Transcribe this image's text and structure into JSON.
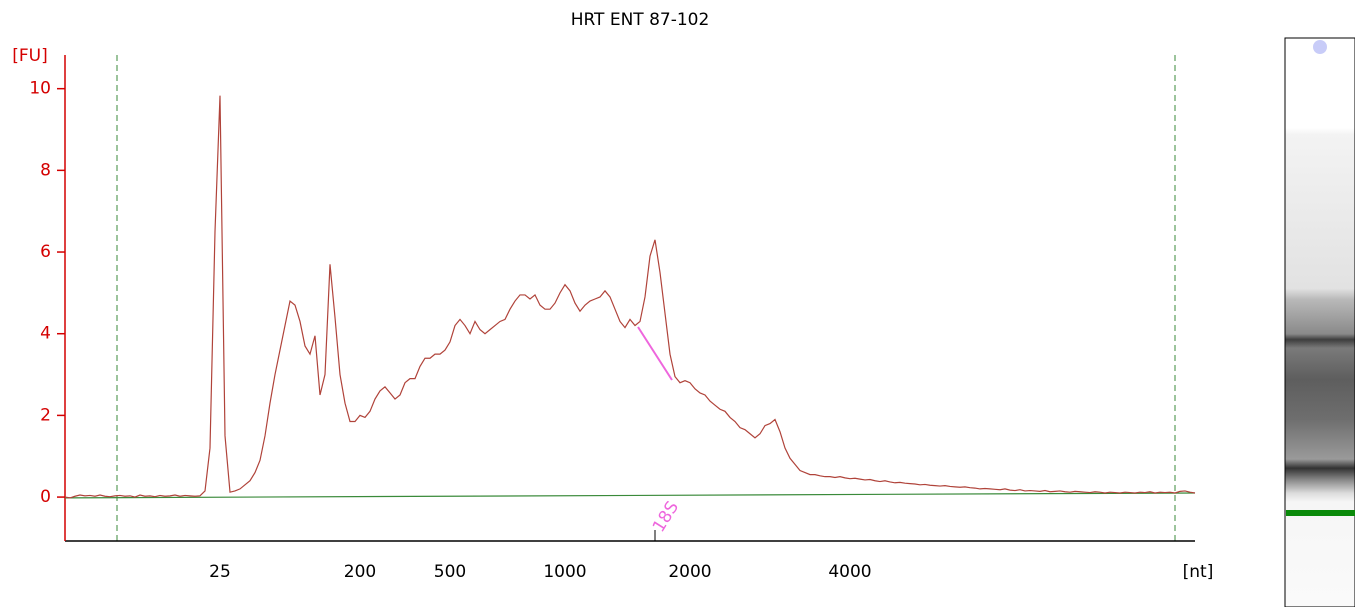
{
  "chart_data": {
    "type": "line",
    "title": "HRT ENT 87-102",
    "y_label": "[FU]",
    "x_label": "[nt]",
    "annotation": "18S",
    "color": "#b0433a",
    "baseline": [
      -0.02,
      0.1
    ],
    "baseline_color": "#3a8a3a",
    "ylim": [
      -1.1,
      10.8
    ],
    "yticks": [
      0,
      2,
      4,
      6,
      8,
      10
    ],
    "categories": [
      null,
      null,
      null,
      null,
      null,
      null,
      null,
      null,
      null,
      null,
      null,
      null,
      null,
      null,
      null,
      null,
      null,
      null,
      null,
      null,
      null,
      null,
      null,
      null,
      null,
      null,
      null,
      null,
      null,
      null,
      null,
      "25",
      null,
      null,
      null,
      null,
      null,
      null,
      null,
      null,
      null,
      null,
      null,
      null,
      null,
      null,
      null,
      null,
      null,
      null,
      null,
      null,
      null,
      null,
      null,
      null,
      null,
      null,
      null,
      "200",
      null,
      null,
      null,
      null,
      null,
      null,
      null,
      null,
      null,
      null,
      null,
      null,
      null,
      null,
      null,
      null,
      null,
      "500",
      null,
      null,
      null,
      null,
      null,
      null,
      null,
      null,
      null,
      null,
      null,
      null,
      null,
      null,
      null,
      null,
      null,
      null,
      null,
      null,
      null,
      null,
      "1000",
      null,
      null,
      null,
      null,
      null,
      null,
      null,
      null,
      null,
      null,
      null,
      null,
      null,
      null,
      null,
      null,
      null,
      null,
      null,
      null,
      null,
      null,
      null,
      null,
      "2000",
      null,
      null,
      null,
      null,
      null,
      null,
      null,
      null,
      null,
      null,
      null,
      null,
      null,
      null,
      null,
      null,
      null,
      null,
      null,
      null,
      null,
      null,
      null,
      null,
      null,
      null,
      null,
      null,
      null,
      null,
      null,
      "4000",
      null,
      null,
      null,
      null,
      null,
      null,
      null,
      null,
      null,
      null,
      null,
      null,
      null,
      null,
      null,
      null,
      null,
      null,
      null,
      null,
      null,
      null,
      null,
      null,
      null,
      null,
      null,
      null,
      null,
      null,
      null,
      null,
      null,
      null,
      null,
      null,
      null,
      null,
      null,
      null,
      null,
      null,
      null,
      null,
      null,
      null,
      null,
      null,
      null,
      null,
      null,
      null,
      null,
      null,
      null,
      null,
      null,
      null,
      null,
      null,
      null,
      null,
      null,
      null,
      null,
      null,
      null,
      null,
      null
    ],
    "values": [
      0,
      -0.02,
      0.02,
      0.05,
      0.03,
      0.04,
      0.02,
      0.05,
      0.02,
      0.01,
      0.03,
      0.04,
      0.02,
      0.03,
      0,
      0.05,
      0.02,
      0.03,
      0.01,
      0.04,
      0.02,
      0.03,
      0.05,
      0.02,
      0.04,
      0.03,
      0.02,
      0.03,
      0.15,
      1.2,
      6.5,
      9.83,
      1.5,
      0.12,
      0.15,
      0.2,
      0.3,
      0.4,
      0.6,
      0.9,
      1.5,
      2.3,
      3.0,
      3.6,
      4.2,
      4.8,
      4.7,
      4.3,
      3.7,
      3.5,
      3.95,
      2.5,
      3.0,
      5.7,
      4.4,
      3.0,
      2.3,
      1.85,
      1.85,
      2.0,
      1.95,
      2.1,
      2.4,
      2.6,
      2.7,
      2.55,
      2.4,
      2.5,
      2.8,
      2.9,
      2.9,
      3.2,
      3.4,
      3.4,
      3.5,
      3.5,
      3.6,
      3.8,
      4.2,
      4.35,
      4.2,
      4.0,
      4.3,
      4.1,
      4.0,
      4.1,
      4.2,
      4.3,
      4.35,
      4.6,
      4.8,
      4.95,
      4.95,
      4.85,
      4.95,
      4.7,
      4.6,
      4.6,
      4.75,
      5.0,
      5.2,
      5.05,
      4.75,
      4.55,
      4.7,
      4.8,
      4.85,
      4.9,
      5.05,
      4.9,
      4.6,
      4.3,
      4.15,
      4.35,
      4.2,
      4.3,
      4.9,
      5.9,
      6.3,
      5.5,
      4.5,
      3.5,
      2.95,
      2.8,
      2.85,
      2.8,
      2.65,
      2.55,
      2.5,
      2.35,
      2.25,
      2.15,
      2.1,
      1.95,
      1.85,
      1.7,
      1.65,
      1.55,
      1.45,
      1.55,
      1.75,
      1.8,
      1.9,
      1.6,
      1.2,
      0.95,
      0.8,
      0.65,
      0.6,
      0.55,
      0.55,
      0.52,
      0.5,
      0.5,
      0.48,
      0.5,
      0.47,
      0.45,
      0.46,
      0.44,
      0.42,
      0.43,
      0.4,
      0.38,
      0.4,
      0.37,
      0.35,
      0.36,
      0.34,
      0.33,
      0.32,
      0.3,
      0.31,
      0.29,
      0.28,
      0.27,
      0.28,
      0.26,
      0.25,
      0.24,
      0.25,
      0.23,
      0.22,
      0.2,
      0.21,
      0.2,
      0.19,
      0.18,
      0.2,
      0.17,
      0.16,
      0.18,
      0.15,
      0.16,
      0.15,
      0.14,
      0.16,
      0.13,
      0.14,
      0.15,
      0.13,
      0.12,
      0.14,
      0.13,
      0.12,
      0.11,
      0.13,
      0.12,
      0.1,
      0.12,
      0.11,
      0.1,
      0.12,
      0.11,
      0.1,
      0.12,
      0.11,
      0.13,
      0.1,
      0.12,
      0.11,
      0.12,
      0.1,
      0.14,
      0.15,
      0.12,
      0.1
    ]
  }
}
